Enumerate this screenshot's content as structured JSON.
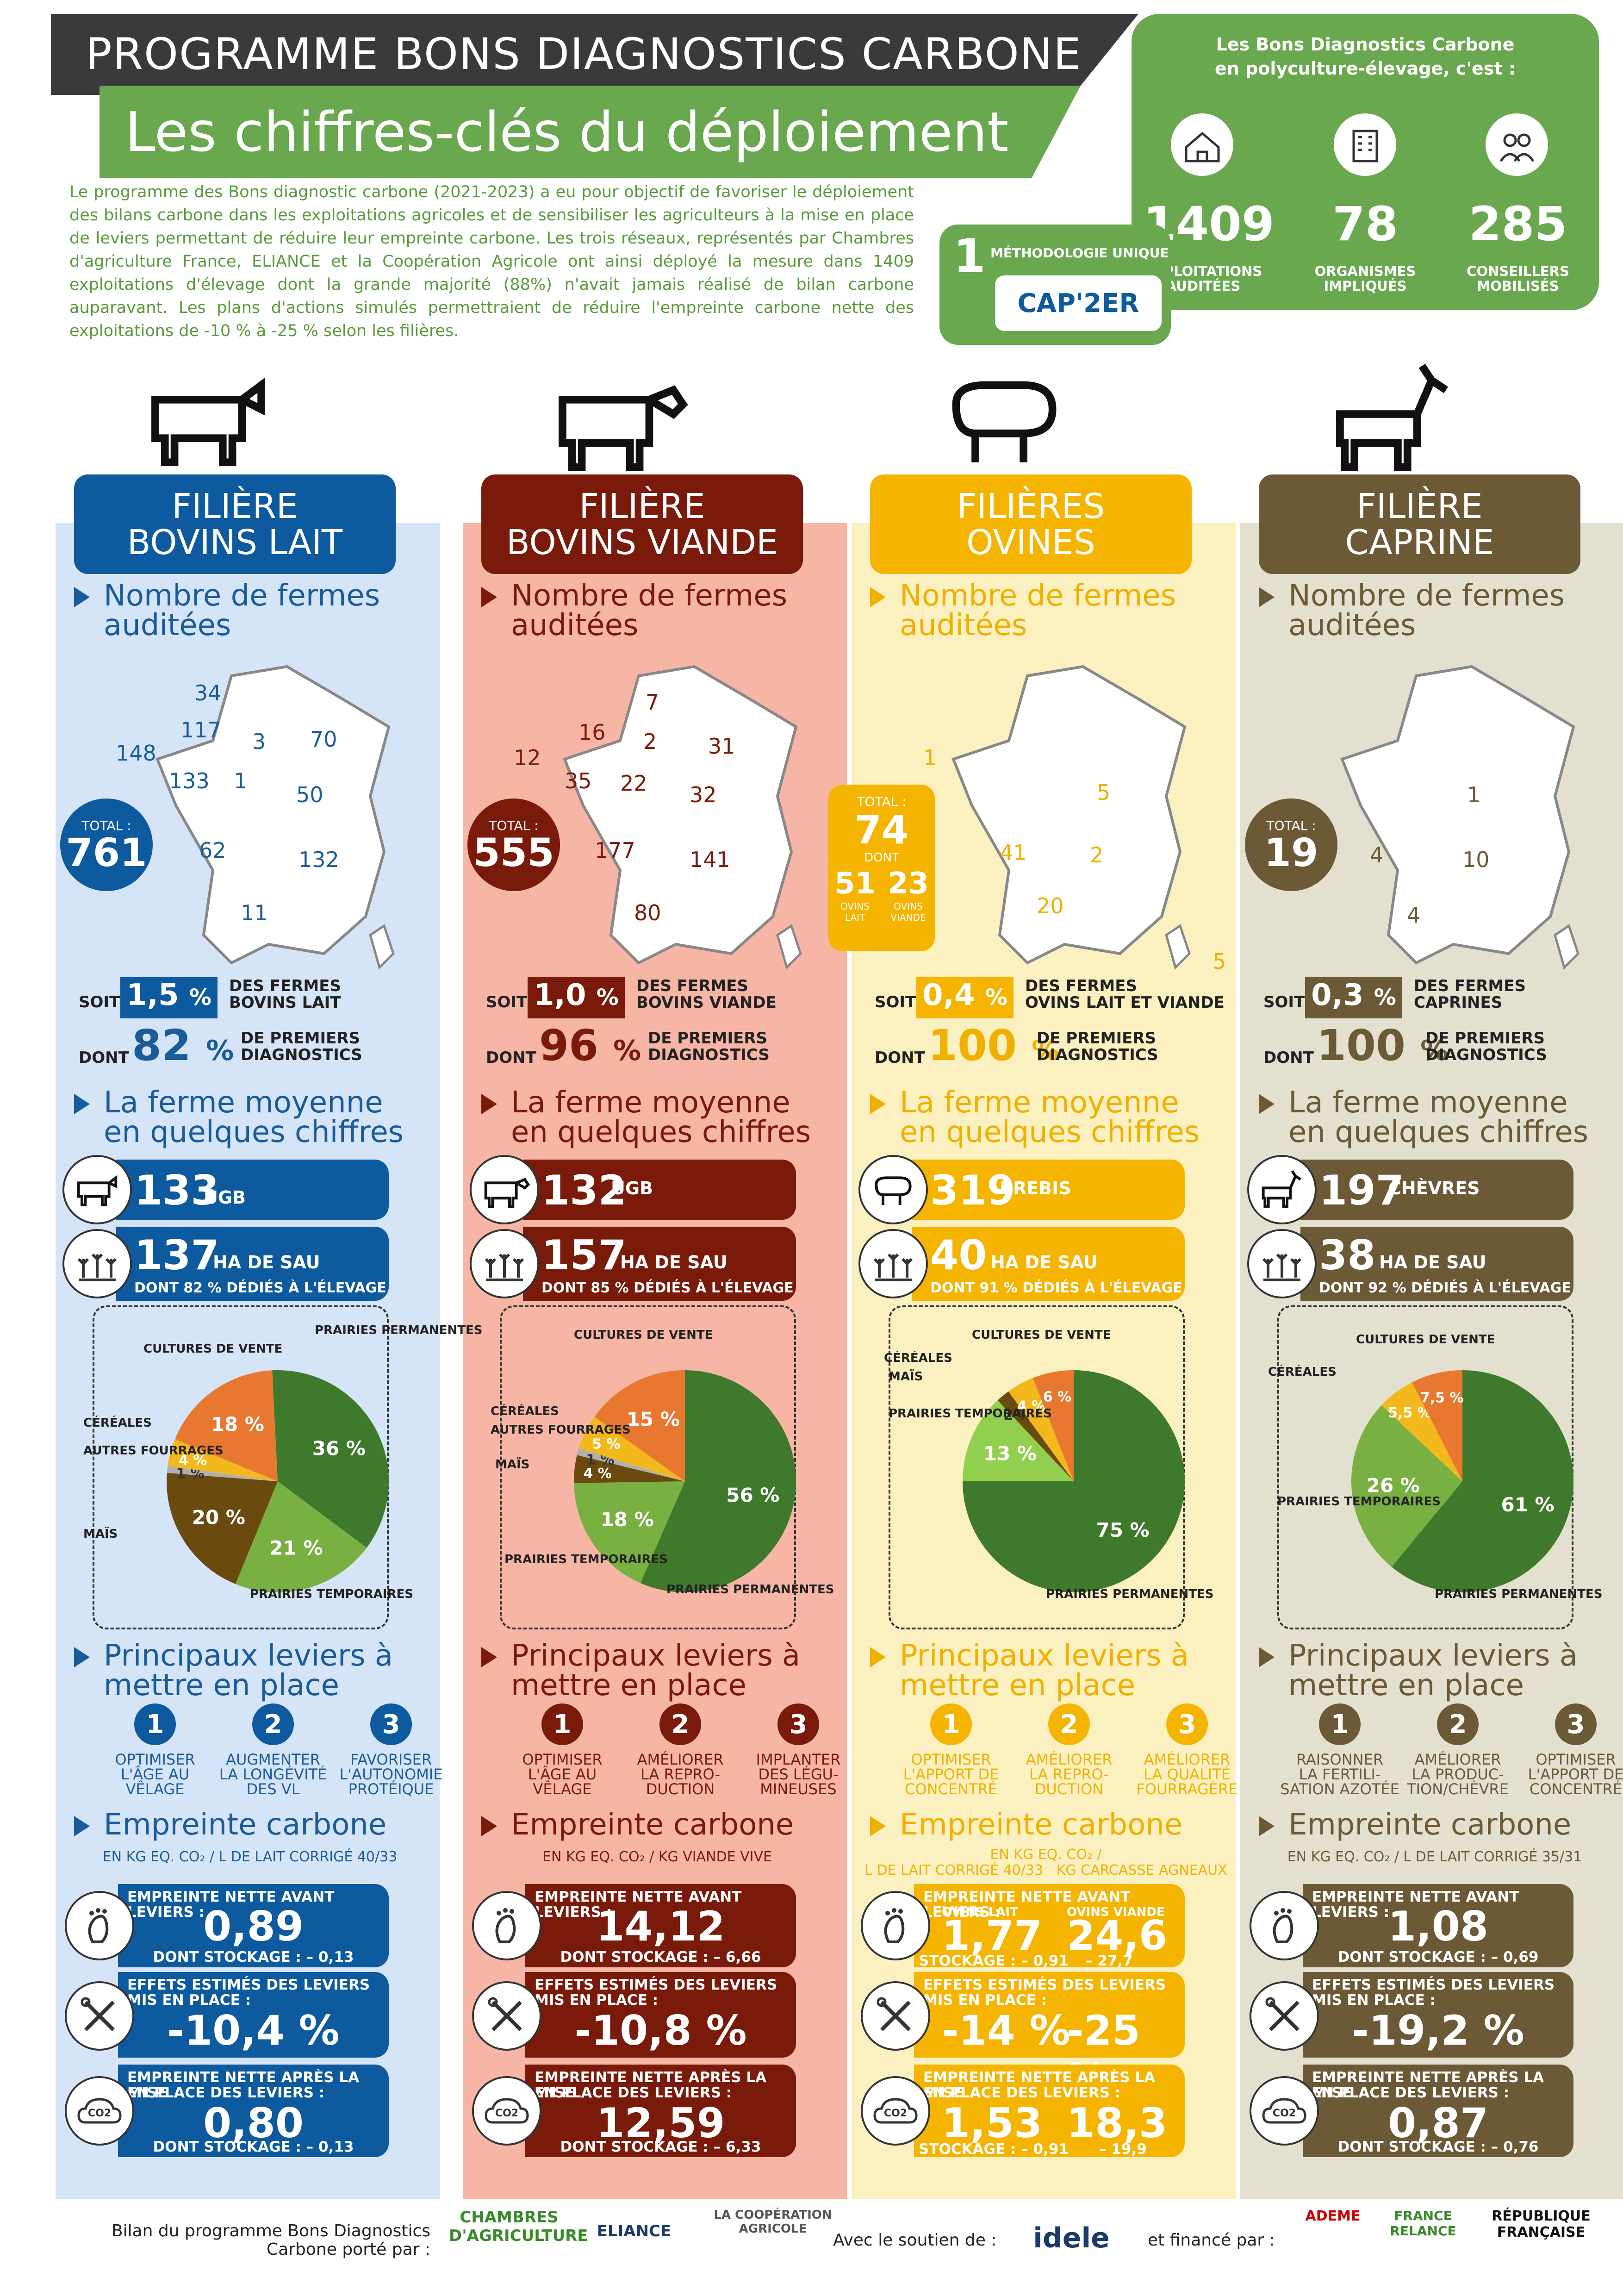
{
  "header": {
    "title": "PROGRAMME BONS DIAGNOSTICS CARBONE",
    "subtitle": "Les chiffres-clés du déploiement",
    "intro": "Le programme des Bons diagnostic carbone (2021-2023) a eu pour objectif de favoriser le déploiement des bilans carbone dans les exploitations agricoles et de sensibiliser les agriculteurs à la mise en place de leviers permettant de réduire leur empreinte carbone. Les trois réseaux, représentés par Chambres d'agriculture France, ELIANCE et la Coopération Agricole ont ainsi déployé la mesure dans 1409 exploitations d'élevage dont la grande majorité (88%) n'avait jamais réalisé de bilan carbone auparavant. Les plans d'actions simulés permettraient de réduire l'empreinte carbone nette des exploitations de -10 % à -25 % selon les filières."
  },
  "green_box": {
    "title_1": "Les Bons Diagnostics Carbone",
    "title_2": "en polyculture-élevage, c'est :",
    "stats": [
      {
        "icon": "farm-icon",
        "value": "1409",
        "label_1": "EXPLOITATIONS",
        "label_2": "AUDITÉES"
      },
      {
        "icon": "building-icon",
        "value": "78",
        "label_1": "ORGANISMES",
        "label_2": "IMPLIQUÉS"
      },
      {
        "icon": "advisors-icon",
        "value": "285",
        "label_1": "CONSEILLERS",
        "label_2": "MOBILISÉS"
      }
    ],
    "method_number": "1",
    "method_label_1": "MÉTHODOLOGIE UNIQUE",
    "method_logo": "CAP'2ER"
  },
  "common": {
    "farms_title_1": "Nombre de fermes",
    "farms_title_2": "auditées",
    "total": "TOTAL :",
    "soit": "SOIT",
    "dont": "DONT",
    "first_diag_1": "DE PREMIERS",
    "first_diag_2": "DIAGNOSTICS",
    "avg_title_1": "La ferme moyenne",
    "avg_title_2": "en quelques chiffres",
    "ha_unit": "HA DE SAU",
    "levers_title_1": "Principaux leviers à",
    "levers_title_2": "mettre en place",
    "footprint_title": "Empreinte carbone",
    "before": "EMPREINTE NETTE AVANT LEVIERS :",
    "effects_1": "EFFETS ESTIMÉS DES LEVIERS",
    "effects_2": "MIS EN PLACE :",
    "after_1": "EMPREINTE NETTE APRÈS LA MISE",
    "after_2": "EN PLACE DES LEVIERS :"
  },
  "columns": [
    {
      "key": "lait",
      "color": "#0d5a9e",
      "bg": "#d6e4f7",
      "text_color": "#1a5c9a",
      "head_1": "FILIÈRE",
      "head_2": "BOVINS LAIT",
      "map_values": [
        {
          "v": "34"
        },
        {
          "v": "117"
        },
        {
          "v": "148"
        },
        {
          "v": "3"
        },
        {
          "v": "70"
        },
        {
          "v": "133"
        },
        {
          "v": "1"
        },
        {
          "v": "50"
        },
        {
          "v": "62"
        },
        {
          "v": "132"
        },
        {
          "v": "11"
        }
      ],
      "total": "761",
      "share": "1,5",
      "share_unit": "%",
      "share_label_1": "DES FERMES",
      "share_label_2": "BOVINS LAIT",
      "first_pct": "82",
      "pct_sign": "%",
      "animals": "133",
      "animals_unit": "UGB",
      "sau": "137",
      "sau_detail": "DONT 82 % DÉDIÉS À L'ÉLEVAGE",
      "pie": [
        {
          "label": "PRAIRIES PERMANENTES",
          "value": 36,
          "color": "#3f7a2c",
          "text": "36 %"
        },
        {
          "label": "PRAIRIES TEMPORAIRES",
          "value": 21,
          "color": "#78b042",
          "text": "21 %"
        },
        {
          "label": "MAÏS",
          "value": 20,
          "color": "#6b4a10",
          "text": "20 %"
        },
        {
          "label": "AUTRES FOURRAGES",
          "value": 1,
          "color": "#b0b0b0",
          "text": "1 %"
        },
        {
          "label": "CÉRÉALES",
          "value": 4,
          "color": "#f2b81c",
          "text": "4 %"
        },
        {
          "label": "CULTURES DE VENTE",
          "value": 18,
          "color": "#e8782f",
          "text": "18 %"
        }
      ],
      "levers": [
        {
          "n": "1",
          "l1": "OPTIMISER",
          "l2": "L'ÂGE AU",
          "l3": "VÊLAGE"
        },
        {
          "n": "2",
          "l1": "AUGMENTER",
          "l2": "LA LONGÉVITÉ",
          "l3": "DES VL"
        },
        {
          "n": "3",
          "l1": "FAVORISER",
          "l2": "L'AUTONOMIE",
          "l3": "PROTÉIQUE"
        }
      ],
      "unit_text": "EN KG EQ. CO₂ / L DE LAIT CORRIGÉ 40/33",
      "before_v": "0,89",
      "before_s": "DONT STOCKAGE : – 0,13",
      "effect_v": "-10,4 %",
      "after_v": "0,80",
      "after_s": "DONT STOCKAGE : – 0,13"
    },
    {
      "key": "viande",
      "color": "#7a1a0a",
      "bg": "#f6b5a5",
      "text_color": "#7a1a0a",
      "head_1": "FILIÈRE",
      "head_2": "BOVINS VIANDE",
      "map_values": [
        {
          "v": "7"
        },
        {
          "v": "16"
        },
        {
          "v": "12"
        },
        {
          "v": "2"
        },
        {
          "v": "31"
        },
        {
          "v": "35"
        },
        {
          "v": "22"
        },
        {
          "v": "32"
        },
        {
          "v": "177"
        },
        {
          "v": "141"
        },
        {
          "v": "80"
        }
      ],
      "total": "555",
      "share": "1,0",
      "share_unit": "%",
      "share_label_1": "DES FERMES",
      "share_label_2": "BOVINS VIANDE",
      "first_pct": "96",
      "pct_sign": "%",
      "animals": "132",
      "animals_unit": "UGB",
      "sau": "157",
      "sau_detail": "DONT 85 % DÉDIÉS À L'ÉLEVAGE",
      "pie": [
        {
          "label": "PRAIRIES PERMANENTES",
          "value": 56,
          "color": "#3f7a2c",
          "text": "56 %"
        },
        {
          "label": "PRAIRIES TEMPORAIRES",
          "value": 18,
          "color": "#78b042",
          "text": "18 %"
        },
        {
          "label": "MAÏS",
          "value": 4,
          "color": "#6b4a10",
          "text": "4 %"
        },
        {
          "label": "AUTRES FOURRAGES",
          "value": 1,
          "color": "#b0b0b0",
          "text": "1 %"
        },
        {
          "label": "CÉRÉALES",
          "value": 5,
          "color": "#f2b81c",
          "text": "5 %"
        },
        {
          "label": "CULTURES DE VENTE",
          "value": 15,
          "color": "#e8782f",
          "text": "15 %"
        }
      ],
      "levers": [
        {
          "n": "1",
          "l1": "OPTIMISER",
          "l2": "L'ÂGE AU",
          "l3": "VÊLAGE"
        },
        {
          "n": "2",
          "l1": "AMÉLIORER",
          "l2": "LA REPRO-",
          "l3": "DUCTION"
        },
        {
          "n": "3",
          "l1": "IMPLANTER",
          "l2": "DES LÉGU-",
          "l3": "MINEUSES"
        }
      ],
      "unit_text": "EN KG EQ. CO₂ / KG VIANDE VIVE",
      "before_v": "14,12",
      "before_s": "DONT STOCKAGE : – 6,66",
      "effect_v": "-10,8 %",
      "after_v": "12,59",
      "after_s": "DONT STOCKAGE : – 6,33"
    },
    {
      "key": "ovines",
      "color": "#f5b400",
      "bg": "#fbf0c0",
      "text_color": "#f0b000",
      "head_1": "FILIÈRES",
      "head_2": "OVINES",
      "map_values": [
        {
          "v": "1"
        },
        {
          "v": "5"
        },
        {
          "v": "41"
        },
        {
          "v": "2"
        },
        {
          "v": "20"
        },
        {
          "v": "5"
        }
      ],
      "total": "74",
      "total_dont": "DONT",
      "total_lait": "51",
      "total_lait_l": "OVINS LAIT",
      "total_viande": "23",
      "total_viande_l": "OVINS VIANDE",
      "share": "0,4",
      "share_unit": "%",
      "share_label_1": "DES FERMES",
      "share_label_2": "OVINS LAIT ET VIANDE",
      "first_pct": "100",
      "pct_sign": "%",
      "animals": "319",
      "animals_unit": "BREBIS",
      "sau": "40",
      "sau_detail": "DONT 91 % DÉDIÉS À L'ÉLEVAGE",
      "pie": [
        {
          "label": "PRAIRIES PERMANENTES",
          "value": 75,
          "color": "#3f7a2c",
          "text": "75 %"
        },
        {
          "label": "PRAIRIES TEMPORAIRES",
          "value": 13,
          "color": "#92cf4f",
          "text": "13 %"
        },
        {
          "label": "MAÏS",
          "value": 2,
          "color": "#6b4a10",
          "text": "2 %"
        },
        {
          "label": "CÉRÉALES",
          "value": 4,
          "color": "#f2b81c",
          "text": "4 %"
        },
        {
          "label": "CULTURES DE VENTE",
          "value": 6,
          "color": "#e8782f",
          "text": "6 %"
        }
      ],
      "levers": [
        {
          "n": "1",
          "l1": "OPTIMISER",
          "l2": "L'APPORT DE",
          "l3": "CONCENTRÉ"
        },
        {
          "n": "2",
          "l1": "AMÉLIORER",
          "l2": "LA REPRO-",
          "l3": "DUCTION"
        },
        {
          "n": "3",
          "l1": "AMÉLIORER",
          "l2": "LA QUALITÉ",
          "l3": "FOURRAGÈRE"
        }
      ],
      "unit_text": "EN KG EQ. CO₂ /",
      "unit_text_2": "L DE LAIT CORRIGÉ 40/33",
      "unit_text_3": "KG CARCASSE AGNEAUX",
      "ov_lait": "OVINS LAIT",
      "ov_viande": "OVINS VIANDE",
      "before_v": "1,77",
      "before_v2": "24,6",
      "before_s": "STOCKAGE : – 0,91",
      "before_s2": "– 27,7",
      "effect_v": "-14 %",
      "effect_v2": "-25 %",
      "after_v": "1,53",
      "after_v2": "18,3",
      "after_s": "STOCKAGE : – 0,91",
      "after_s2": "– 19,9"
    },
    {
      "key": "caprine",
      "color": "#6b5a35",
      "bg": "#e4e0d0",
      "text_color": "#6b5a35",
      "head_1": "FILIÈRE",
      "head_2": "CAPRINE",
      "map_values": [
        {
          "v": "1"
        },
        {
          "v": "4"
        },
        {
          "v": "10"
        },
        {
          "v": "4"
        }
      ],
      "total": "19",
      "share": "0,3",
      "share_unit": "%",
      "share_label_1": "DES FERMES",
      "share_label_2": "CAPRINES",
      "first_pct": "100",
      "pct_sign": "%",
      "animals": "197",
      "animals_unit": "CHÈVRES",
      "sau": "38",
      "sau_detail": "DONT 92 % DÉDIÉS À L'ÉLEVAGE",
      "pie": [
        {
          "label": "PRAIRIES PERMANENTES",
          "value": 61,
          "color": "#3f7a2c",
          "text": "61 %"
        },
        {
          "label": "PRAIRIES TEMPORAIRES",
          "value": 26,
          "color": "#78b042",
          "text": "26 %"
        },
        {
          "label": "CÉRÉALES",
          "value": 5.5,
          "color": "#f2b81c",
          "text": "5,5 %"
        },
        {
          "label": "CULTURES DE VENTE",
          "value": 7.5,
          "color": "#e8782f",
          "text": "7,5 %"
        }
      ],
      "levers": [
        {
          "n": "1",
          "l1": "RAISONNER",
          "l2": "LA FERTILI-",
          "l3": "SATION AZOTÉE"
        },
        {
          "n": "2",
          "l1": "AMÉLIORER",
          "l2": "LA PRODUC-",
          "l3": "TION/CHÈVRE"
        },
        {
          "n": "3",
          "l1": "OPTIMISER",
          "l2": "L'APPORT DE",
          "l3": "CONCENTRÉ"
        }
      ],
      "unit_text": "EN KG EQ. CO₂ / L DE LAIT CORRIGÉ 35/31",
      "before_v": "1,08",
      "before_s": "DONT STOCKAGE : – 0,69",
      "effect_v": "-19,2 %",
      "after_v": "0,87",
      "after_s": "DONT STOCKAGE : – 0,76"
    }
  ],
  "footer": {
    "carried_1": "Bilan du programme Bons Diagnostics",
    "carried_2": "Carbone porté par :",
    "logo1": "CHAMBRES D'AGRICULTURE",
    "logo2": "ELIANCE",
    "logo3": "LA COOPÉRATION AGRICOLE",
    "support": "Avec le soutien de :",
    "logo4": "idele",
    "funded": "et financé par :",
    "logo5": "ADEME",
    "logo6": "FRANCE RELANCE",
    "logo7": "RÉPUBLIQUE FRANÇAISE"
  }
}
